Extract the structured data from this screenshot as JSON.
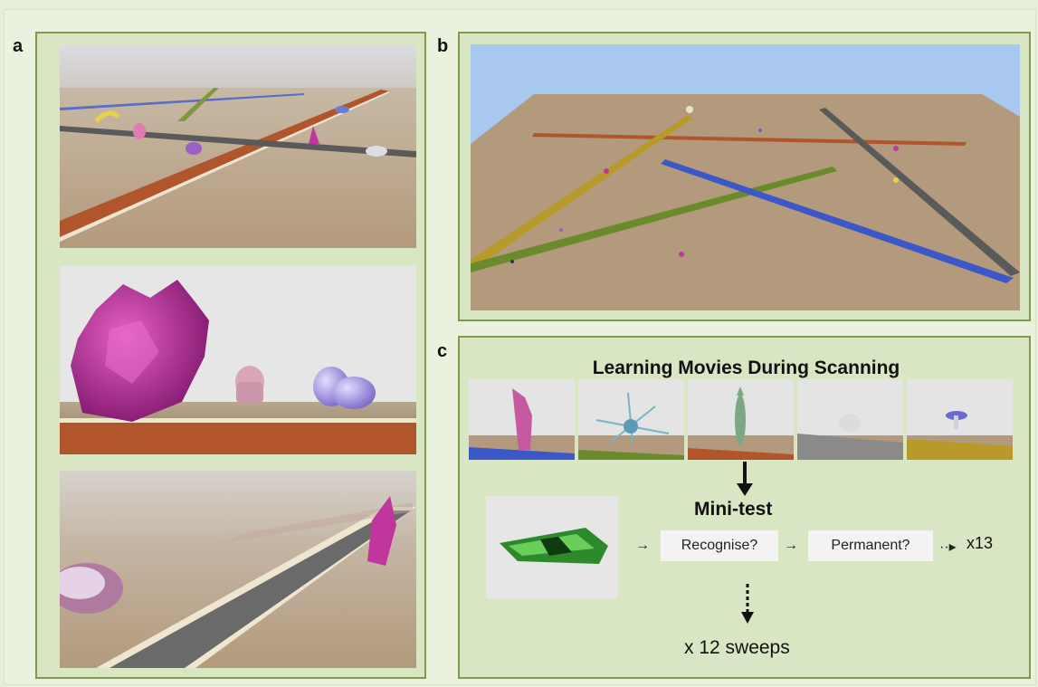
{
  "panels": {
    "a": {
      "label": "a"
    },
    "b": {
      "label": "b"
    },
    "c": {
      "label": "c",
      "title": "Learning Movies During Scanning",
      "mini_test": "Mini-test",
      "question1": "Recognise?",
      "question2": "Permanent?",
      "repeat_label": "x13",
      "sweeps_label": "x 12 sweeps",
      "thumbnail_path_colors": [
        "#3c57c8",
        "#6a8a2c",
        "#b0552c",
        "#8a8a8a",
        "#b89a2a"
      ]
    }
  },
  "colors": {
    "panel_border": "#7d9a4a",
    "panel_fill": "#d9e6c4",
    "sky": "#a8c8f0",
    "ground": "#b39a7a",
    "path_red": "#b0552c",
    "path_blue": "#3c57c8",
    "path_green": "#6a8a2c",
    "path_yellow": "#b89a2a",
    "path_gray": "#5a5a5a",
    "object_pink": "#c0369e"
  }
}
